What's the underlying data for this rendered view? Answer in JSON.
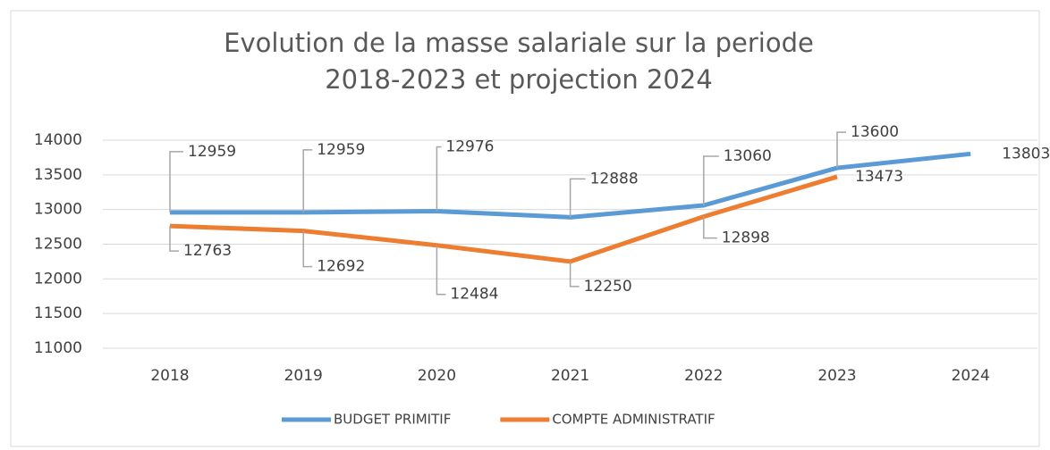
{
  "chart_data": {
    "type": "line",
    "title": "Evolution de la masse salariale sur la periode 2018-2023  et projection 2024",
    "categories": [
      "2018",
      "2019",
      "2020",
      "2021",
      "2022",
      "2023",
      "2024"
    ],
    "series": [
      {
        "name": "BUDGET PRIMITIF",
        "color": "#5b9bd5",
        "values": [
          12959,
          12959,
          12976,
          12888,
          13060,
          13600,
          13803
        ]
      },
      {
        "name": "COMPTE ADMINISTRATIF",
        "color": "#ed7d31",
        "values": [
          12763,
          12692,
          12484,
          12250,
          12898,
          13473,
          null
        ]
      }
    ],
    "ylim": [
      11000,
      14000
    ],
    "yticks": [
      11000,
      11500,
      12000,
      12500,
      13000,
      13500,
      14000
    ],
    "grid": true,
    "legend": "bottom"
  }
}
